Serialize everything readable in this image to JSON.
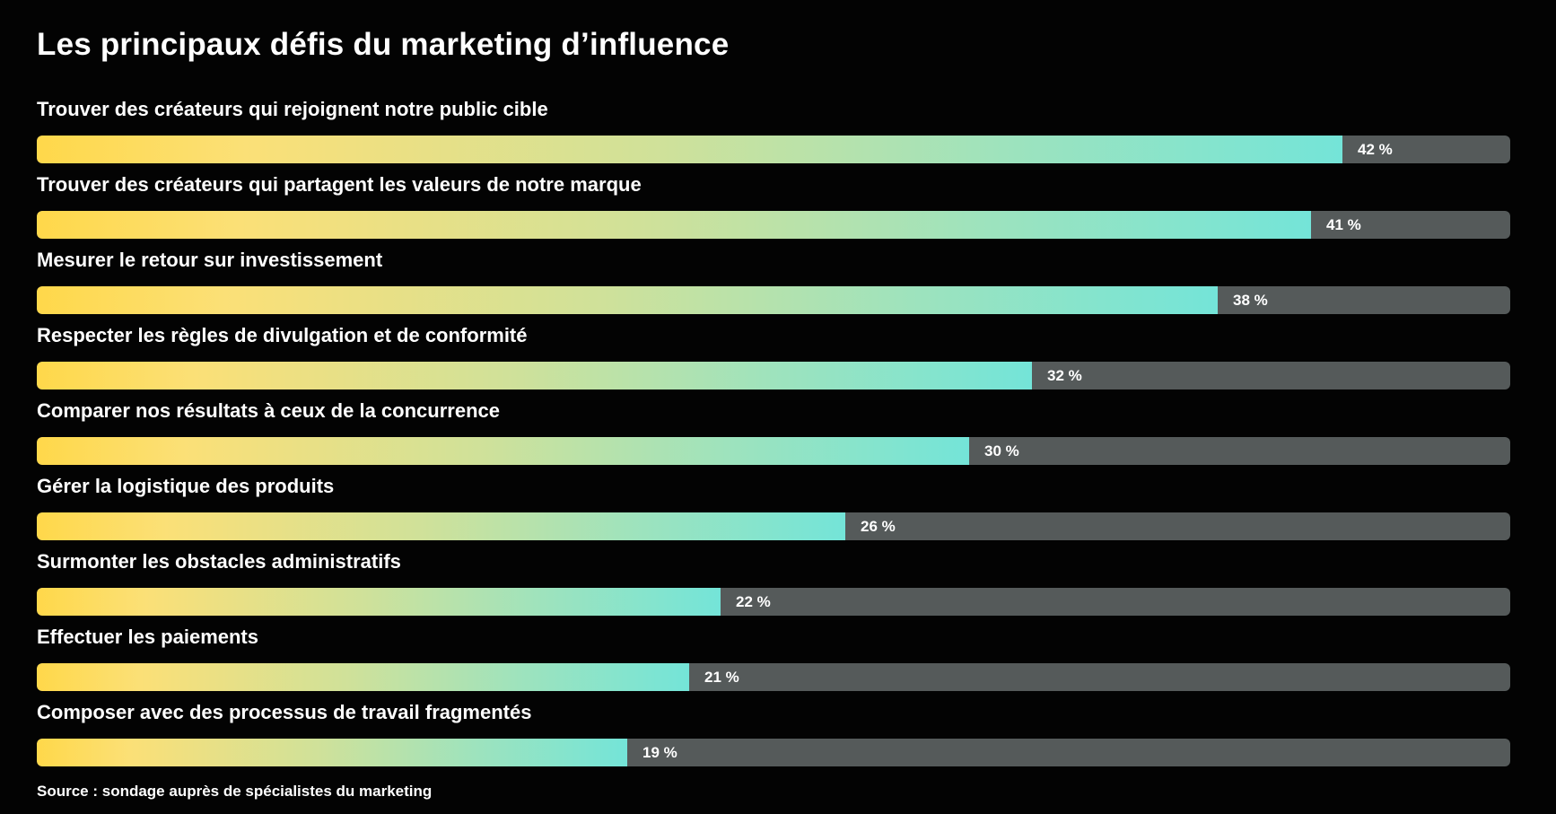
{
  "chart_data": {
    "type": "bar",
    "orientation": "horizontal",
    "title": "Les principaux défis du marketing d’influence",
    "categories": [
      "Trouver des créateurs qui rejoignent notre public cible",
      "Trouver des créateurs qui partagent les valeurs de notre marque",
      "Mesurer le retour sur investissement",
      "Respecter les règles de divulgation et de conformité",
      "Comparer nos résultats à ceux de la concurrence",
      "Gérer la logistique des produits",
      "Surmonter les obstacles administratifs",
      "Effectuer les paiements",
      "Composer avec des processus de travail fragmentés"
    ],
    "values": [
      42,
      41,
      38,
      32,
      30,
      26,
      22,
      21,
      19
    ],
    "value_labels": [
      "42 %",
      "41 %",
      "38 %",
      "32 %",
      "30 %",
      "26 %",
      "22 %",
      "21 %",
      "19 %"
    ],
    "xlim": [
      0,
      47.4
    ],
    "xlabel": "",
    "ylabel": "",
    "grid": false,
    "legend": "none",
    "source": "Source : sondage auprès de spécialistes du marketing"
  },
  "colors": {
    "background": "#030303",
    "track": "#555a5a",
    "gradient_start": "#ffd84a",
    "gradient_end": "#74e4d8",
    "text": "#ffffff"
  }
}
